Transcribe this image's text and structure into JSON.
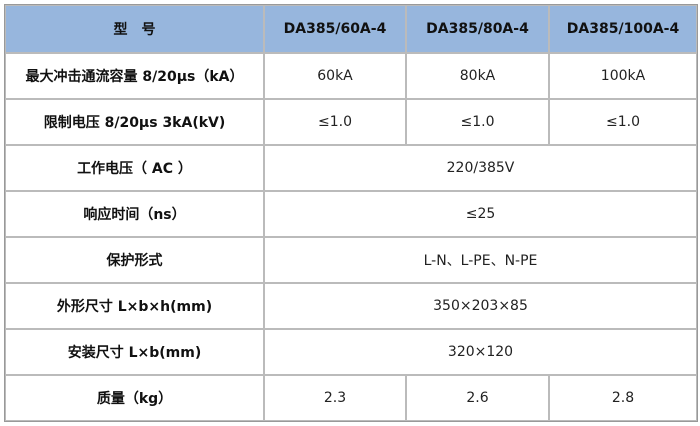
{
  "table": {
    "header": [
      "型　号",
      "DA385/60A-4",
      "DA385/80A-4",
      "DA385/100A-4"
    ],
    "rows": [
      [
        "最大冲击通流容量 8/20μs（kA）",
        "60kA",
        "80kA",
        "100kA"
      ],
      [
        "限制电压 8/20μs 3kA(kV)",
        "≤1.0",
        "≤1.0",
        "≤1.0"
      ],
      [
        "工作电压（ AC ）",
        "220/385V"
      ],
      [
        "响应时间（ns）",
        "≤25"
      ],
      [
        "保护形式",
        "L-N、L-PE、N-PE"
      ],
      [
        "外形尺寸 L×b×h(mm)",
        "350×203×85"
      ],
      [
        "安装尺寸 L×b(mm)",
        "320×120"
      ],
      [
        "质量（kg）",
        "2.3",
        "2.6",
        "2.8"
      ]
    ]
  }
}
